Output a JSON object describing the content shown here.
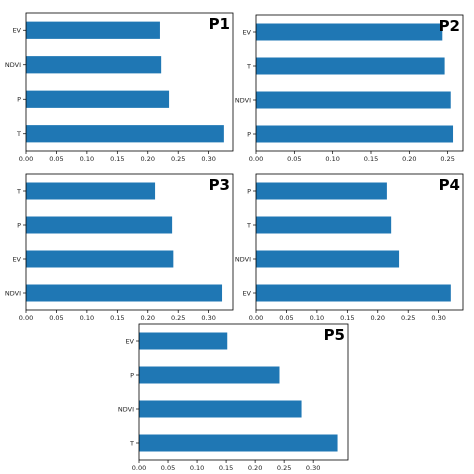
{
  "chart_data": [
    {
      "type": "bar",
      "orientation": "horizontal",
      "panel_label": "P1",
      "categories": [
        "EV",
        "NDVI",
        "P",
        "T"
      ],
      "values": [
        0.22,
        0.222,
        0.235,
        0.325
      ],
      "xlim": [
        0,
        0.34
      ],
      "xticks": [
        "0.00",
        "0.05",
        "0.10",
        "0.15",
        "0.20",
        "0.25",
        "0.30"
      ],
      "bar_color": "#1f77b4"
    },
    {
      "type": "bar",
      "orientation": "horizontal",
      "panel_label": "P2",
      "categories": [
        "EV",
        "T",
        "NDVI",
        "P"
      ],
      "values": [
        0.243,
        0.246,
        0.254,
        0.257
      ],
      "xlim": [
        0,
        0.27
      ],
      "xticks": [
        "0.00",
        "0.05",
        "0.10",
        "0.15",
        "0.20",
        "0.25"
      ],
      "bar_color": "#1f77b4"
    },
    {
      "type": "bar",
      "orientation": "horizontal",
      "panel_label": "P3",
      "categories": [
        "T",
        "P",
        "EV",
        "NDVI"
      ],
      "values": [
        0.212,
        0.24,
        0.242,
        0.322
      ],
      "xlim": [
        0,
        0.34
      ],
      "xticks": [
        "0.00",
        "0.05",
        "0.10",
        "0.15",
        "0.20",
        "0.25",
        "0.30"
      ],
      "bar_color": "#1f77b4"
    },
    {
      "type": "bar",
      "orientation": "horizontal",
      "panel_label": "P4",
      "categories": [
        "P",
        "T",
        "NDVI",
        "EV"
      ],
      "values": [
        0.215,
        0.222,
        0.235,
        0.32
      ],
      "xlim": [
        0,
        0.34
      ],
      "xticks": [
        "0.00",
        "0.05",
        "0.10",
        "0.15",
        "0.20",
        "0.25",
        "0.30"
      ],
      "bar_color": "#1f77b4"
    },
    {
      "type": "bar",
      "orientation": "horizontal",
      "panel_label": "P5",
      "categories": [
        "EV",
        "P",
        "NDVI",
        "T"
      ],
      "values": [
        0.152,
        0.242,
        0.28,
        0.342
      ],
      "xlim": [
        0,
        0.36
      ],
      "xticks": [
        "0.00",
        "0.05",
        "0.10",
        "0.15",
        "0.20",
        "0.25",
        "0.30"
      ],
      "bar_color": "#1f77b4"
    }
  ]
}
